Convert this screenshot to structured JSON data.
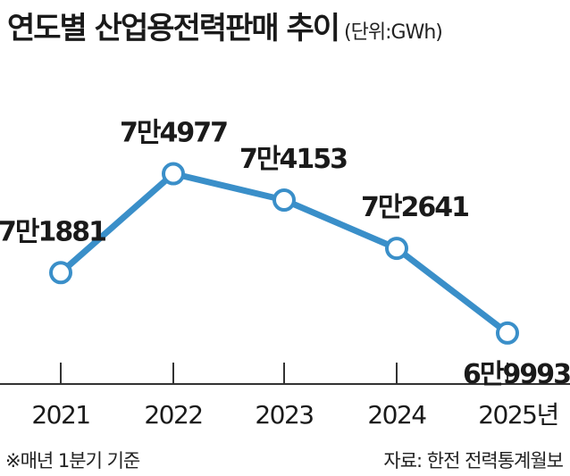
{
  "header": {
    "title": "연도별 산업용전력판매 추이",
    "unit": "(단위:GWh)"
  },
  "footer": {
    "note": "※매년 1분기 기준",
    "source": "자료: 한전 전력통계월보"
  },
  "colors": {
    "line": "#3a8fc9",
    "marker_fill": "#ffffff",
    "axis": "#333333"
  },
  "chart_data": {
    "type": "line",
    "categories": [
      "2021",
      "2022",
      "2023",
      "2024",
      "2025년"
    ],
    "values": [
      71881,
      74977,
      74153,
      72641,
      69993
    ],
    "data_labels": [
      "7만1881",
      "7만4977",
      "7만4153",
      "7만2641",
      "6만9993"
    ],
    "title": "연도별 산업용전력판매 추이",
    "unit": "(단위:GWh)",
    "ylim": [
      67000,
      76500
    ],
    "grid": false,
    "legend": "none"
  }
}
